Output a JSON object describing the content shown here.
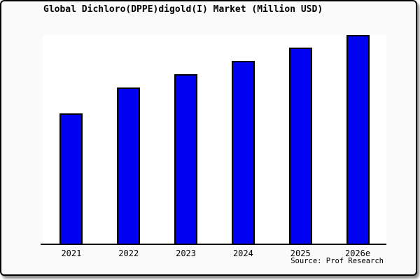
{
  "window": {
    "background_color": "#fafafa",
    "plot_background_color": "#ffffff",
    "frame_border_color": "#000000"
  },
  "chart_data": {
    "type": "bar",
    "title": "Global Dichloro(DPPE)digold(I) Market (Million USD)",
    "categories": [
      "2021",
      "2022",
      "2023",
      "2024",
      "2025",
      "2026e"
    ],
    "values": [
      62.7,
      75.0,
      81.3,
      87.7,
      94.0,
      100.0
    ],
    "value_scale": "relative bar height, % of tallest bar (no numeric y-axis shown in chart)",
    "xlabel": "",
    "ylabel": "",
    "ylim": [
      0,
      100
    ],
    "y_axis_shown": false,
    "gridlines": false,
    "legend": false,
    "bar_color": "#0000f2",
    "bar_border_color": "#000000",
    "axis_color": "#000000",
    "source_label": "Source: Prof Research"
  }
}
